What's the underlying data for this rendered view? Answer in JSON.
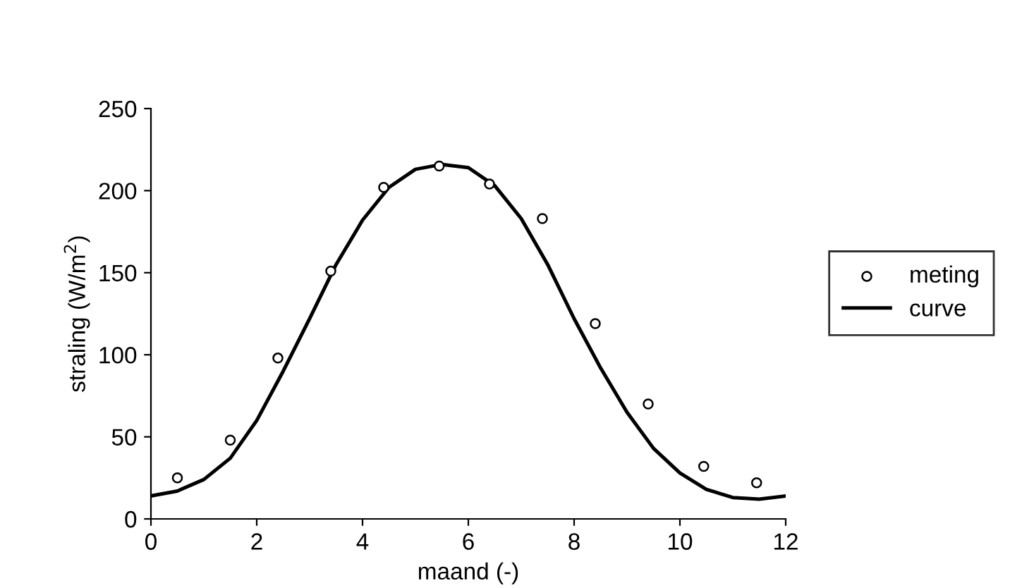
{
  "chart_data": {
    "type": "scatter",
    "xlabel": "maand (-)",
    "ylabel": "straling (W/m$^{2}$)",
    "xlim": [
      0,
      12
    ],
    "xticks": [
      0,
      2,
      4,
      6,
      8,
      10,
      12
    ],
    "ylim": [
      0,
      250
    ],
    "yticks": [
      0,
      50,
      100,
      150,
      200,
      250
    ],
    "grid": false,
    "legend": "right",
    "series": [
      {
        "name": "meting",
        "marker": "circle",
        "color": "#000000",
        "x": [
          0.5,
          1.5,
          2.4,
          3.4,
          4.4,
          5.45,
          6.4,
          7.4,
          8.4,
          9.4,
          10.45,
          11.45
        ],
        "values": [
          25,
          48,
          98,
          151,
          202,
          215,
          204,
          183,
          119,
          70,
          32,
          22
        ]
      },
      {
        "name": "curve",
        "type": "line",
        "marker": "none",
        "line_style": "solid",
        "color": "#000000",
        "x": [
          0,
          0.5,
          1,
          1.5,
          2,
          2.5,
          3,
          3.5,
          4,
          4.5,
          5,
          5.5,
          6,
          6.5,
          7,
          7.5,
          8,
          8.5,
          9,
          9.5,
          10,
          10.5,
          11,
          11.5,
          12
        ],
        "values": [
          14,
          17,
          24,
          37,
          60,
          90,
          122,
          155,
          182,
          202,
          213,
          216,
          214,
          203,
          183,
          155,
          122,
          92,
          65,
          43,
          28,
          18,
          13,
          12,
          14
        ]
      }
    ]
  }
}
